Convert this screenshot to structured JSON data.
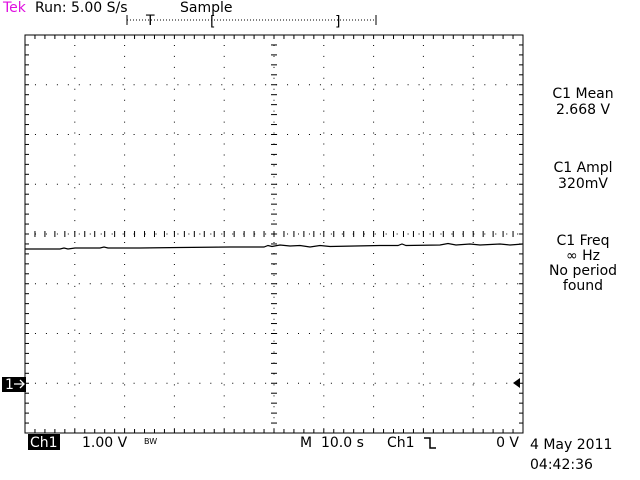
{
  "header": {
    "brand": "Tek",
    "status": "Run: 5.00 S/s",
    "mode": "Sample",
    "trigger_marker": "T",
    "record_start": "[",
    "record_end": "]"
  },
  "measurements": [
    {
      "label": "C1 Mean",
      "value": "2.668 V"
    },
    {
      "label": "C1 Ampl",
      "value": "320mV"
    },
    {
      "label": "C1 Freq",
      "value": "∞ Hz",
      "lines": [
        "No period",
        "found"
      ]
    }
  ],
  "channel_marker": "1",
  "footer": {
    "channel": "Ch1",
    "scale": "1.00 V",
    "bandwidth": "BW",
    "timebase": "M  10.0 s",
    "trigger_source": "Ch1",
    "trigger_level": "0 V",
    "date": "4 May 2011",
    "time": "04:42:36"
  }
}
